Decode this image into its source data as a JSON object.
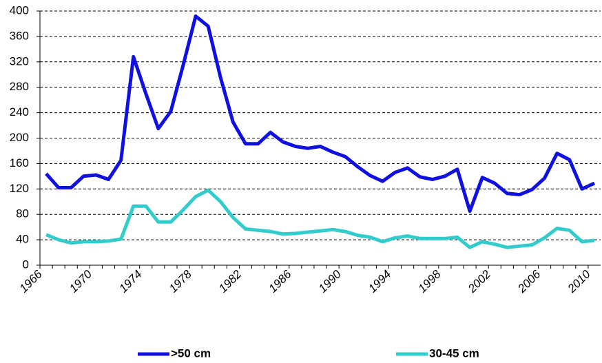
{
  "chart_data": {
    "type": "line",
    "categories": [
      "1966",
      null,
      null,
      null,
      "1970",
      null,
      null,
      null,
      "1974",
      null,
      null,
      null,
      "1978",
      null,
      null,
      null,
      "1982",
      null,
      null,
      null,
      "1986",
      null,
      null,
      null,
      "1990",
      null,
      null,
      null,
      "1994",
      null,
      null,
      null,
      "1998",
      null,
      null,
      null,
      "2002",
      null,
      null,
      null,
      "2006",
      null,
      null,
      null,
      "2010"
    ],
    "series": [
      {
        "name": ">50 cm",
        "color": "#1010e0",
        "values": [
          144,
          122,
          122,
          140,
          142,
          135,
          165,
          328,
          270,
          215,
          242,
          315,
          392,
          376,
          295,
          225,
          191,
          191,
          209,
          194,
          187,
          184,
          187,
          178,
          171,
          155,
          141,
          132,
          146,
          153,
          139,
          135,
          140,
          151,
          85,
          138,
          129,
          113,
          111,
          119,
          137,
          176,
          166,
          120,
          129
        ]
      },
      {
        "name": "30-45 cm",
        "color": "#33cccc",
        "values": [
          48,
          40,
          35,
          37,
          37,
          38,
          41,
          93,
          93,
          68,
          68,
          87,
          108,
          118,
          100,
          75,
          57,
          55,
          53,
          49,
          50,
          52,
          54,
          56,
          53,
          47,
          44,
          37,
          43,
          46,
          42,
          42,
          42,
          44,
          28,
          37,
          33,
          28,
          30,
          32,
          43,
          58,
          55,
          37,
          39
        ]
      }
    ],
    "ylim": [
      0,
      400
    ],
    "yticks": [
      0,
      40,
      80,
      120,
      160,
      200,
      240,
      280,
      320,
      360,
      400
    ],
    "grid": true,
    "legend": "bottom"
  }
}
